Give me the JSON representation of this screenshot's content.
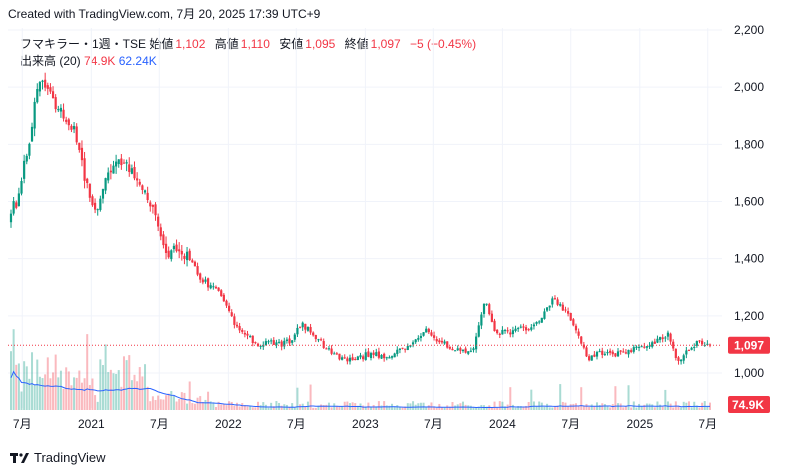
{
  "header": {
    "text": "Created with TradingView.com, 7月 20, 2025 17:39 UTC+9"
  },
  "legend": {
    "symbol": "フマキラー・1週・TSE",
    "open_label": "始値",
    "open": "1,102",
    "high_label": "高値",
    "high": "1,110",
    "low_label": "安値",
    "low": "1,095",
    "close_label": "終値",
    "close": "1,097",
    "change": "−5 (−0.45%)",
    "volume_label": "出来高 (20)",
    "volume": "74.9K",
    "volume_ma": "62.24K"
  },
  "price_badge": "1,097",
  "volume_badge": "74.9K",
  "footer": {
    "brand": "TradingView"
  },
  "colors": {
    "up": "#089981",
    "down": "#f23645",
    "volume_ma": "#2962ff",
    "text": "#131722"
  },
  "chart_data": {
    "type": "candlestick",
    "ylim": [
      930,
      2200
    ],
    "y_ticks": [
      "2,200",
      "2,000",
      "1,800",
      "1,600",
      "1,400",
      "1,200",
      "1,000"
    ],
    "x_tick_labels": [
      "7月",
      "2021",
      "7月",
      "2022",
      "7月",
      "2023",
      "7月",
      "2024",
      "7月",
      "2025",
      "7月"
    ],
    "last_close": 1097,
    "anchors": [
      [
        "2020-06",
        1500,
        1580
      ],
      [
        "2020-07",
        1700,
        1780
      ],
      [
        "2020-08",
        1950,
        2040
      ],
      [
        "2020-09",
        1900,
        1980
      ],
      [
        "2020-10",
        1860,
        1900
      ],
      [
        "2020-11",
        1800,
        1860
      ],
      [
        "2020-12",
        1620,
        1680
      ],
      [
        "2021-01",
        1560,
        1560
      ],
      [
        "2021-02",
        1680,
        1700
      ],
      [
        "2021-03",
        1730,
        1730
      ],
      [
        "2021-04",
        1700,
        1710
      ],
      [
        "2021-05",
        1620,
        1640
      ],
      [
        "2021-06",
        1560,
        1570
      ],
      [
        "2021-07",
        1400,
        1420
      ],
      [
        "2021-08",
        1440,
        1440
      ],
      [
        "2021-09",
        1400,
        1410
      ],
      [
        "2021-10",
        1340,
        1340
      ],
      [
        "2021-11",
        1300,
        1300
      ],
      [
        "2021-12",
        1270,
        1270
      ],
      [
        "2022-01",
        1180,
        1180
      ],
      [
        "2022-02",
        1130,
        1140
      ],
      [
        "2022-03",
        1080,
        1100
      ],
      [
        "2022-04",
        1100,
        1110
      ],
      [
        "2022-05",
        1090,
        1100
      ],
      [
        "2022-06",
        1100,
        1110
      ],
      [
        "2022-07",
        1140,
        1170
      ],
      [
        "2022-08",
        1130,
        1140
      ],
      [
        "2022-09",
        1080,
        1090
      ],
      [
        "2022-10",
        1050,
        1060
      ],
      [
        "2022-11",
        1045,
        1050
      ],
      [
        "2022-12",
        1045,
        1050
      ],
      [
        "2023-01",
        1060,
        1070
      ],
      [
        "2023-02",
        1055,
        1060
      ],
      [
        "2023-03",
        1060,
        1065
      ],
      [
        "2023-04",
        1080,
        1090
      ],
      [
        "2023-05",
        1110,
        1120
      ],
      [
        "2023-06",
        1140,
        1160
      ],
      [
        "2023-07",
        1100,
        1110
      ],
      [
        "2023-08",
        1080,
        1090
      ],
      [
        "2023-09",
        1060,
        1070
      ],
      [
        "2023-10",
        1080,
        1090
      ],
      [
        "2023-11",
        1200,
        1260
      ],
      [
        "2023-12",
        1130,
        1140
      ],
      [
        "2024-01",
        1130,
        1140
      ],
      [
        "2024-02",
        1150,
        1160
      ],
      [
        "2024-03",
        1140,
        1150
      ],
      [
        "2024-04",
        1180,
        1200
      ],
      [
        "2024-05",
        1240,
        1260
      ],
      [
        "2024-06",
        1210,
        1220
      ],
      [
        "2024-07",
        1150,
        1160
      ],
      [
        "2024-08",
        1020,
        1040
      ],
      [
        "2024-09",
        1060,
        1070
      ],
      [
        "2024-10",
        1070,
        1070
      ],
      [
        "2024-11",
        1060,
        1065
      ],
      [
        "2024-12",
        1080,
        1085
      ],
      [
        "2025-01",
        1090,
        1095
      ],
      [
        "2025-02",
        1110,
        1110
      ],
      [
        "2025-03",
        1120,
        1140
      ],
      [
        "2025-04",
        1020,
        1030
      ],
      [
        "2025-05",
        1080,
        1090
      ],
      [
        "2025-06",
        1110,
        1110
      ],
      [
        "2025-07",
        1100,
        1097
      ]
    ]
  }
}
